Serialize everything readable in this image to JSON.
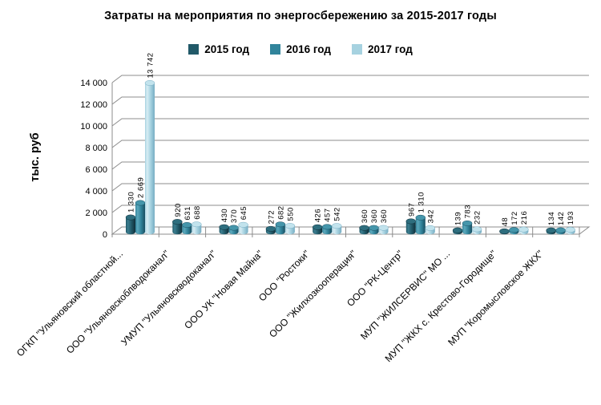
{
  "chart_data": {
    "type": "bar",
    "variant": "3d-cylinder",
    "title": "Затраты на мероприятия по энергосбережению за 2015-2017 годы",
    "ylabel": "тыс. руб",
    "xlabel": "",
    "ylim": [
      0,
      14000
    ],
    "ytick_step": 2000,
    "ytick_labels": [
      "0",
      "2 000",
      "4 000",
      "6 000",
      "8 000",
      "10 000",
      "12 000",
      "14 000"
    ],
    "grid": true,
    "legend_position": "top",
    "categories": [
      "ОГКП \"Ульяновский областной...",
      "ООО \"Ульяновскоблводоканал\"",
      "УМУП \"Ульяновскводоканал\"",
      "ООО УК \"Новая Майна\"",
      "ООО \"Ростоки\"",
      "ООО \"Жилхозкооперация\"",
      "ООО \"РК-Центр\"",
      "МУП \"ЖИЛСЕРВИС\" МО ...",
      "МУП \"ЖКХ с. Крестово-Городище\"",
      "МУП \"Коромысловское ЖКХ\""
    ],
    "series": [
      {
        "name": "2015 год",
        "color": "#215968",
        "color_light": "#3c7e90",
        "color_dark": "#102f3a",
        "color_top": "#2e6e7e",
        "values": [
          1330,
          920,
          430,
          272,
          426,
          360,
          967,
          139,
          48,
          134
        ]
      },
      {
        "name": "2016 год",
        "color": "#31849b",
        "color_light": "#5ca8bc",
        "color_dark": "#1a4f62",
        "color_top": "#4596ab",
        "values": [
          2669,
          631,
          370,
          682,
          457,
          360,
          1310,
          783,
          172,
          142
        ]
      },
      {
        "name": "2017 год",
        "color": "#a6d2e0",
        "color_light": "#d8edf4",
        "color_dark": "#77adc3",
        "color_top": "#c2e3ed",
        "values": [
          13742,
          688,
          645,
          550,
          542,
          360,
          342,
          232,
          216,
          193
        ]
      }
    ],
    "colors": {
      "grid": "#8c8c8c",
      "text": "#000000",
      "background": "#ffffff"
    }
  }
}
